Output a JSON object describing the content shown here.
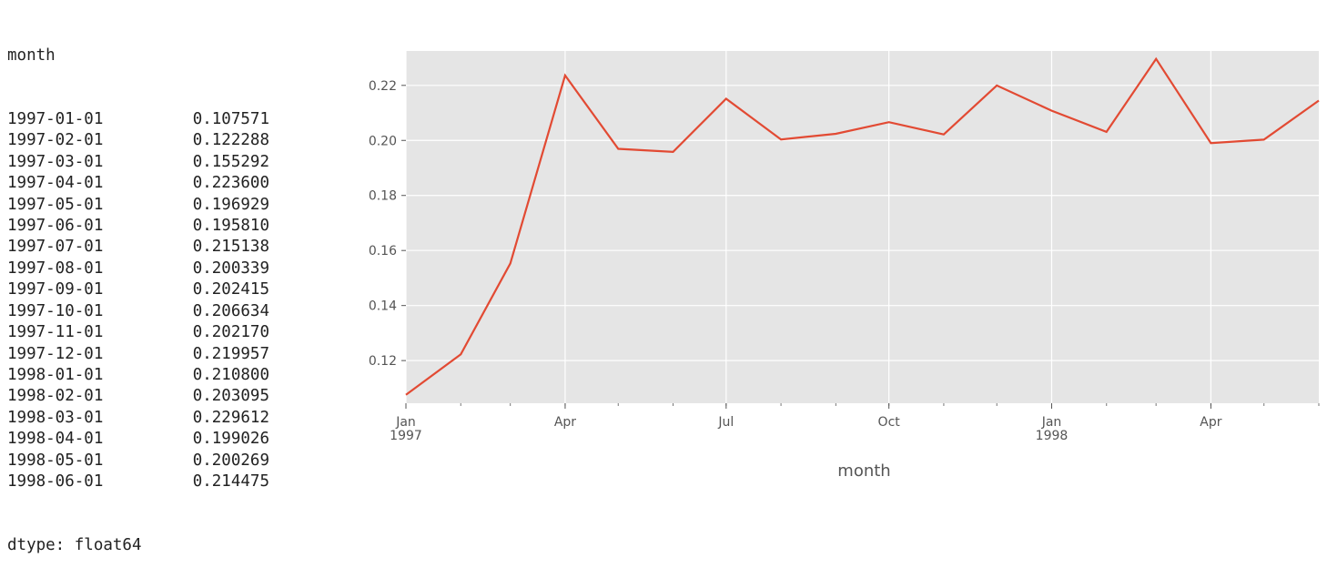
{
  "series_output": {
    "index_name": "month",
    "rows": [
      {
        "index": "1997-01-01",
        "value": "0.107571"
      },
      {
        "index": "1997-02-01",
        "value": "0.122288"
      },
      {
        "index": "1997-03-01",
        "value": "0.155292"
      },
      {
        "index": "1997-04-01",
        "value": "0.223600"
      },
      {
        "index": "1997-05-01",
        "value": "0.196929"
      },
      {
        "index": "1997-06-01",
        "value": "0.195810"
      },
      {
        "index": "1997-07-01",
        "value": "0.215138"
      },
      {
        "index": "1997-08-01",
        "value": "0.200339"
      },
      {
        "index": "1997-09-01",
        "value": "0.202415"
      },
      {
        "index": "1997-10-01",
        "value": "0.206634"
      },
      {
        "index": "1997-11-01",
        "value": "0.202170"
      },
      {
        "index": "1997-12-01",
        "value": "0.219957"
      },
      {
        "index": "1998-01-01",
        "value": "0.210800"
      },
      {
        "index": "1998-02-01",
        "value": "0.203095"
      },
      {
        "index": "1998-03-01",
        "value": "0.229612"
      },
      {
        "index": "1998-04-01",
        "value": "0.199026"
      },
      {
        "index": "1998-05-01",
        "value": "0.200269"
      },
      {
        "index": "1998-06-01",
        "value": "0.214475"
      }
    ],
    "dtype_line": "dtype: float64"
  },
  "chart_data": {
    "type": "line",
    "title": "",
    "xlabel": "month",
    "ylabel": "",
    "x": [
      "1997-01-01",
      "1997-02-01",
      "1997-03-01",
      "1997-04-01",
      "1997-05-01",
      "1997-06-01",
      "1997-07-01",
      "1997-08-01",
      "1997-09-01",
      "1997-10-01",
      "1997-11-01",
      "1997-12-01",
      "1998-01-01",
      "1998-02-01",
      "1998-03-01",
      "1998-04-01",
      "1998-05-01",
      "1998-06-01"
    ],
    "series": [
      {
        "values": [
          0.107571,
          0.122288,
          0.155292,
          0.2236,
          0.196929,
          0.19581,
          0.215138,
          0.200339,
          0.202415,
          0.206634,
          0.20217,
          0.219957,
          0.2108,
          0.203095,
          0.229612,
          0.199026,
          0.200269,
          0.214475
        ],
        "color": "#e24a33"
      }
    ],
    "ylim": [
      0.1045,
      0.2325
    ],
    "y_ticks": [
      "0.12",
      "0.14",
      "0.16",
      "0.18",
      "0.20",
      "0.22"
    ],
    "x_ticks_major": [
      {
        "x": "1997-01-01",
        "label": "Jan",
        "year": "1997"
      },
      {
        "x": "1997-04-01",
        "label": "Apr",
        "year": ""
      },
      {
        "x": "1997-07-01",
        "label": "Jul",
        "year": ""
      },
      {
        "x": "1997-10-01",
        "label": "Oct",
        "year": ""
      },
      {
        "x": "1998-01-01",
        "label": "Jan",
        "year": "1998"
      },
      {
        "x": "1998-04-01",
        "label": "Apr",
        "year": ""
      }
    ],
    "grid": true,
    "style": "ggplot",
    "background_color": "#e5e5e5",
    "grid_color": "#ffffff"
  }
}
